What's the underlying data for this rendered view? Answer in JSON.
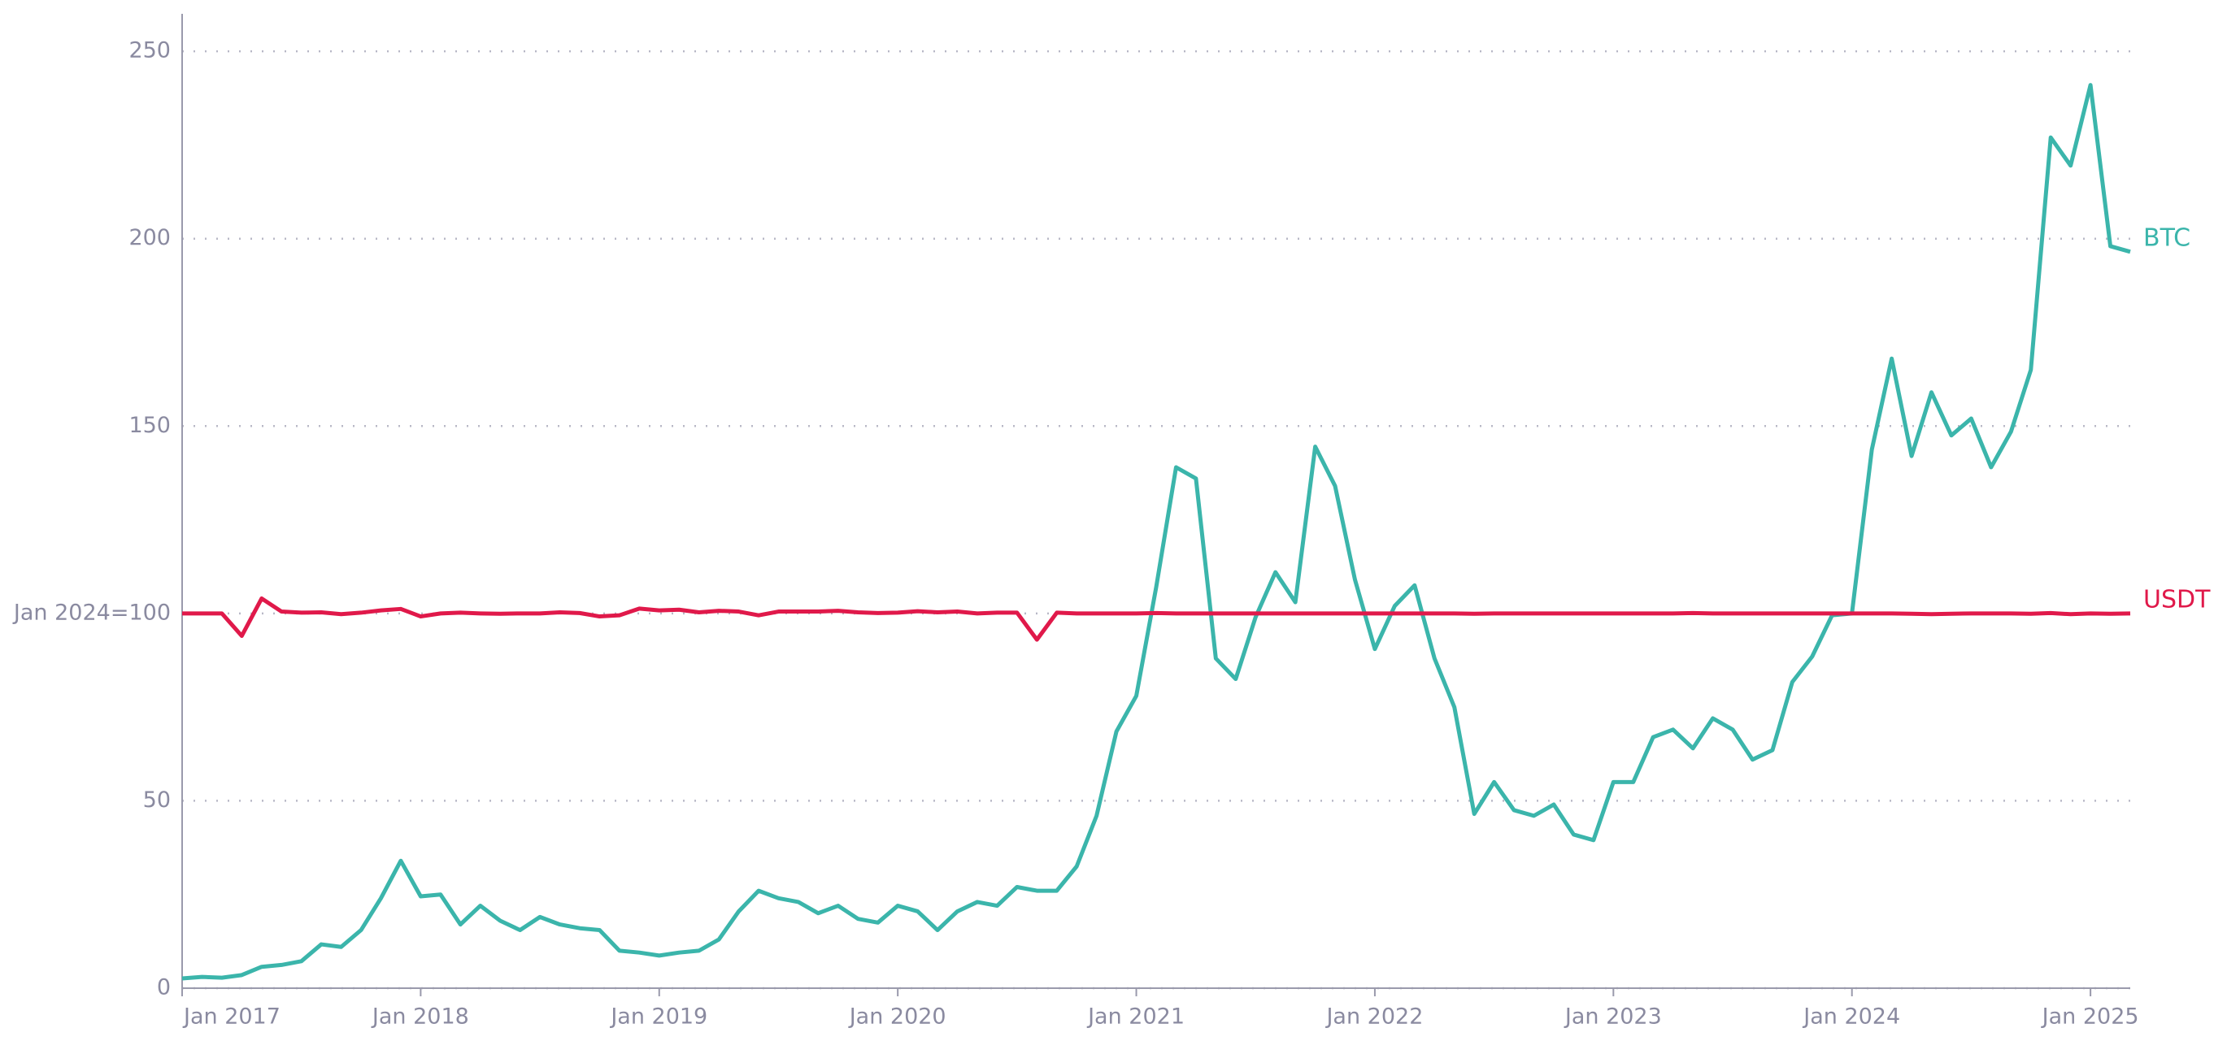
{
  "chart_data": {
    "type": "line",
    "x": [
      "2017-01",
      "2017-02",
      "2017-03",
      "2017-04",
      "2017-05",
      "2017-06",
      "2017-07",
      "2017-08",
      "2017-09",
      "2017-10",
      "2017-11",
      "2017-12",
      "2018-01",
      "2018-02",
      "2018-03",
      "2018-04",
      "2018-05",
      "2018-06",
      "2018-07",
      "2018-08",
      "2018-09",
      "2018-10",
      "2018-11",
      "2018-12",
      "2019-01",
      "2019-02",
      "2019-03",
      "2019-04",
      "2019-05",
      "2019-06",
      "2019-07",
      "2019-08",
      "2019-09",
      "2019-10",
      "2019-11",
      "2019-12",
      "2020-01",
      "2020-02",
      "2020-03",
      "2020-04",
      "2020-05",
      "2020-06",
      "2020-07",
      "2020-08",
      "2020-09",
      "2020-10",
      "2020-11",
      "2020-12",
      "2021-01",
      "2021-02",
      "2021-03",
      "2021-04",
      "2021-05",
      "2021-06",
      "2021-07",
      "2021-08",
      "2021-09",
      "2021-10",
      "2021-11",
      "2021-12",
      "2022-01",
      "2022-02",
      "2022-03",
      "2022-04",
      "2022-05",
      "2022-06",
      "2022-07",
      "2022-08",
      "2022-09",
      "2022-10",
      "2022-11",
      "2022-12",
      "2023-01",
      "2023-02",
      "2023-03",
      "2023-04",
      "2023-05",
      "2023-06",
      "2023-07",
      "2023-08",
      "2023-09",
      "2023-10",
      "2023-11",
      "2023-12",
      "2024-01",
      "2024-02",
      "2024-03",
      "2024-04",
      "2024-05",
      "2024-06",
      "2024-07",
      "2024-08",
      "2024-09",
      "2024-10",
      "2024-11",
      "2024-12",
      "2025-01",
      "2025-02",
      "2025-03"
    ],
    "series": [
      {
        "name": "BTC",
        "color": "#3bb5ab",
        "values": [
          2.6,
          3,
          2.8,
          3.5,
          5.7,
          6.2,
          7.2,
          11.7,
          11,
          15.5,
          24,
          34,
          24.5,
          25,
          17,
          22,
          18,
          15.5,
          19,
          17,
          16,
          15.5,
          10,
          9.5,
          8.7,
          9.5,
          10,
          13,
          20.5,
          26,
          24,
          23,
          20,
          22,
          18.5,
          17.5,
          22,
          20.5,
          15.5,
          20.5,
          23,
          22,
          27,
          26,
          26,
          32.5,
          46,
          68.5,
          78,
          107,
          139,
          136,
          88,
          82.5,
          99,
          111,
          103,
          144.5,
          134,
          109,
          90.5,
          102,
          107.5,
          88,
          75,
          46.5,
          55,
          47.5,
          46,
          49,
          41,
          39.5,
          55,
          55,
          67,
          69,
          64,
          72,
          69,
          61,
          63.5,
          81.7,
          88.5,
          99.5,
          100,
          143.7,
          168,
          142,
          159,
          147.5,
          152,
          139,
          148.5,
          165,
          227,
          219.5,
          241,
          198,
          196.5
        ]
      },
      {
        "name": "USDT",
        "color": "#e0194a",
        "values": [
          100,
          100,
          100,
          94,
          104,
          100.5,
          100.2,
          100.3,
          99.8,
          100.2,
          100.8,
          101.2,
          99.2,
          100,
          100.2,
          100,
          99.9,
          100,
          100,
          100.3,
          100.1,
          99.2,
          99.5,
          101.3,
          100.8,
          101,
          100.3,
          100.7,
          100.5,
          99.5,
          100.5,
          100.5,
          100.5,
          100.7,
          100.3,
          100.1,
          100.2,
          100.6,
          100.3,
          100.5,
          100,
          100.2,
          100.2,
          93,
          100.2,
          100,
          100,
          100,
          100,
          100.1,
          100,
          100,
          100,
          100,
          100,
          100,
          100,
          100,
          100,
          100,
          100,
          100,
          100,
          100,
          100,
          99.9,
          100,
          100,
          100,
          100,
          100,
          100,
          100,
          100,
          100,
          100,
          100.1,
          100,
          100,
          100,
          100,
          100,
          100,
          100,
          100,
          100,
          100,
          99.9,
          99.8,
          99.9,
          100,
          100,
          100,
          99.9,
          100.1,
          99.8,
          100,
          99.9,
          100
        ]
      }
    ],
    "xlim": [
      "2017-01",
      "2025-03"
    ],
    "xticks": [
      {
        "value": "2017-01",
        "label": "Jan 2017"
      },
      {
        "value": "2018-01",
        "label": "Jan 2018"
      },
      {
        "value": "2019-01",
        "label": "Jan 2019"
      },
      {
        "value": "2020-01",
        "label": "Jan 2020"
      },
      {
        "value": "2021-01",
        "label": "Jan 2021"
      },
      {
        "value": "2022-01",
        "label": "Jan 2022"
      },
      {
        "value": "2023-01",
        "label": "Jan 2023"
      },
      {
        "value": "2024-01",
        "label": "Jan 2024"
      },
      {
        "value": "2025-01",
        "label": "Jan 2025"
      }
    ],
    "ylim": [
      0,
      260
    ],
    "yticks": [
      0,
      50,
      {
        "value": 100,
        "label": "Jan 2024=100"
      },
      150,
      200,
      250
    ],
    "grid": true
  }
}
